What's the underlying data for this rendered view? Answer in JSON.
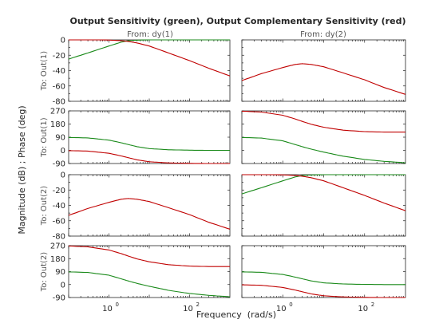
{
  "chart_data": {
    "type": "line",
    "title": "Output Sensitivity (green), Output Complementary Sensitivity (red)",
    "xlabel": "Frequency  (rad/s)",
    "ylabel": "Magnitude (dB) ; Phase (deg)",
    "x_scale": "log",
    "xlim": [
      0.1,
      1000
    ],
    "x_ticks": [
      1,
      100
    ],
    "x_tick_labels": [
      "10",
      "10"
    ],
    "x_tick_exponents": [
      "0",
      "2"
    ],
    "columns": [
      "From: dy(1)",
      "From: dy(2)"
    ],
    "rows": [
      "To: Out(1)",
      "To: Out(1)",
      "To: Out(2)",
      "To: Out(2)"
    ],
    "colors": {
      "green": "#1a8a1a",
      "red": "#c00000"
    },
    "magnitude_axis": {
      "ylim": [
        -80,
        0
      ],
      "ticks": [
        0,
        -20,
        -40,
        -60,
        -80
      ],
      "tick_labels": [
        "0",
        "-20",
        "-40",
        "-60",
        "-80"
      ]
    },
    "phase_axis": {
      "ylim": [
        -90,
        270
      ],
      "ticks": [
        270,
        180,
        90,
        0,
        -90
      ],
      "tick_labels": [
        "270",
        "180",
        "90",
        "0",
        "-90"
      ]
    },
    "panels": [
      {
        "row": 0,
        "col": 0,
        "kind": "magnitude",
        "series": [
          {
            "color": "green",
            "x": [
              0.1,
              0.3,
              1,
              2,
              3,
              5,
              10,
              100,
              1000
            ],
            "y": [
              -25,
              -17,
              -8,
              -3,
              -1,
              -0.3,
              0,
              0,
              0
            ]
          },
          {
            "color": "red",
            "x": [
              0.1,
              0.5,
              1,
              2,
              3,
              5,
              10,
              30,
              100,
              300,
              1000
            ],
            "y": [
              0,
              0,
              -0.2,
              -1,
              -2,
              -4,
              -8,
              -17,
              -27,
              -37,
              -47
            ]
          }
        ]
      },
      {
        "row": 0,
        "col": 1,
        "kind": "magnitude",
        "series": [
          {
            "color": "red",
            "x": [
              0.1,
              0.3,
              1,
              2,
              3,
              5,
              10,
              30,
              100,
              300,
              1000
            ],
            "y": [
              -53,
              -44,
              -36,
              -32,
              -31,
              -32,
              -35,
              -43,
              -52,
              -62,
              -71
            ]
          }
        ]
      },
      {
        "row": 1,
        "col": 0,
        "kind": "phase",
        "series": [
          {
            "color": "green",
            "x": [
              0.1,
              0.3,
              1,
              2,
              3,
              5,
              10,
              30,
              100,
              300,
              1000
            ],
            "y": [
              88,
              85,
              70,
              52,
              40,
              25,
              12,
              4,
              1,
              0,
              0
            ]
          },
          {
            "color": "red",
            "x": [
              0.1,
              0.3,
              1,
              2,
              3,
              5,
              10,
              30,
              100,
              300,
              1000
            ],
            "y": [
              -2,
              -5,
              -20,
              -38,
              -50,
              -65,
              -78,
              -86,
              -89,
              -90,
              -90
            ]
          }
        ]
      },
      {
        "row": 1,
        "col": 1,
        "kind": "phase",
        "series": [
          {
            "color": "red",
            "x": [
              0.1,
              0.3,
              1,
              2,
              3,
              5,
              10,
              30,
              100,
              300,
              1000
            ],
            "y": [
              268,
              262,
              240,
              215,
              198,
              178,
              158,
              138,
              128,
              125,
              125
            ]
          },
          {
            "color": "green",
            "x": [
              0.1,
              0.3,
              1,
              2,
              3,
              5,
              10,
              30,
              100,
              300,
              1000
            ],
            "y": [
              88,
              84,
              65,
              40,
              25,
              8,
              -12,
              -40,
              -62,
              -75,
              -85
            ]
          }
        ]
      },
      {
        "row": 2,
        "col": 0,
        "kind": "magnitude",
        "series": [
          {
            "color": "red",
            "x": [
              0.1,
              0.3,
              1,
              2,
              3,
              5,
              10,
              30,
              100,
              300,
              1000
            ],
            "y": [
              -53,
              -44,
              -36,
              -32,
              -31,
              -32,
              -35,
              -43,
              -52,
              -62,
              -71
            ]
          }
        ]
      },
      {
        "row": 2,
        "col": 1,
        "kind": "magnitude",
        "series": [
          {
            "color": "green",
            "x": [
              0.1,
              0.3,
              1,
              2,
              3,
              5,
              10,
              100,
              1000
            ],
            "y": [
              -25,
              -17,
              -8,
              -3,
              -1,
              -0.3,
              0,
              0,
              0
            ]
          },
          {
            "color": "red",
            "x": [
              0.1,
              0.5,
              1,
              2,
              3,
              5,
              10,
              30,
              100,
              300,
              1000
            ],
            "y": [
              0,
              0,
              -0.2,
              -1,
              -2,
              -4,
              -8,
              -17,
              -27,
              -37,
              -47
            ]
          }
        ]
      },
      {
        "row": 3,
        "col": 0,
        "kind": "phase",
        "series": [
          {
            "color": "red",
            "x": [
              0.1,
              0.3,
              1,
              2,
              3,
              5,
              10,
              30,
              100,
              300,
              1000
            ],
            "y": [
              268,
              262,
              240,
              215,
              198,
              178,
              158,
              138,
              128,
              125,
              125
            ]
          },
          {
            "color": "green",
            "x": [
              0.1,
              0.3,
              1,
              2,
              3,
              5,
              10,
              30,
              100,
              300,
              1000
            ],
            "y": [
              88,
              84,
              65,
              40,
              25,
              8,
              -12,
              -40,
              -62,
              -75,
              -85
            ]
          }
        ]
      },
      {
        "row": 3,
        "col": 1,
        "kind": "phase",
        "series": [
          {
            "color": "green",
            "x": [
              0.1,
              0.3,
              1,
              2,
              3,
              5,
              10,
              30,
              100,
              300,
              1000
            ],
            "y": [
              88,
              85,
              70,
              52,
              40,
              25,
              12,
              4,
              1,
              0,
              0
            ]
          },
          {
            "color": "red",
            "x": [
              0.1,
              0.3,
              1,
              2,
              3,
              5,
              10,
              30,
              100,
              300,
              1000
            ],
            "y": [
              -2,
              -5,
              -20,
              -38,
              -50,
              -65,
              -78,
              -86,
              -89,
              -90,
              -90
            ]
          }
        ]
      }
    ]
  }
}
